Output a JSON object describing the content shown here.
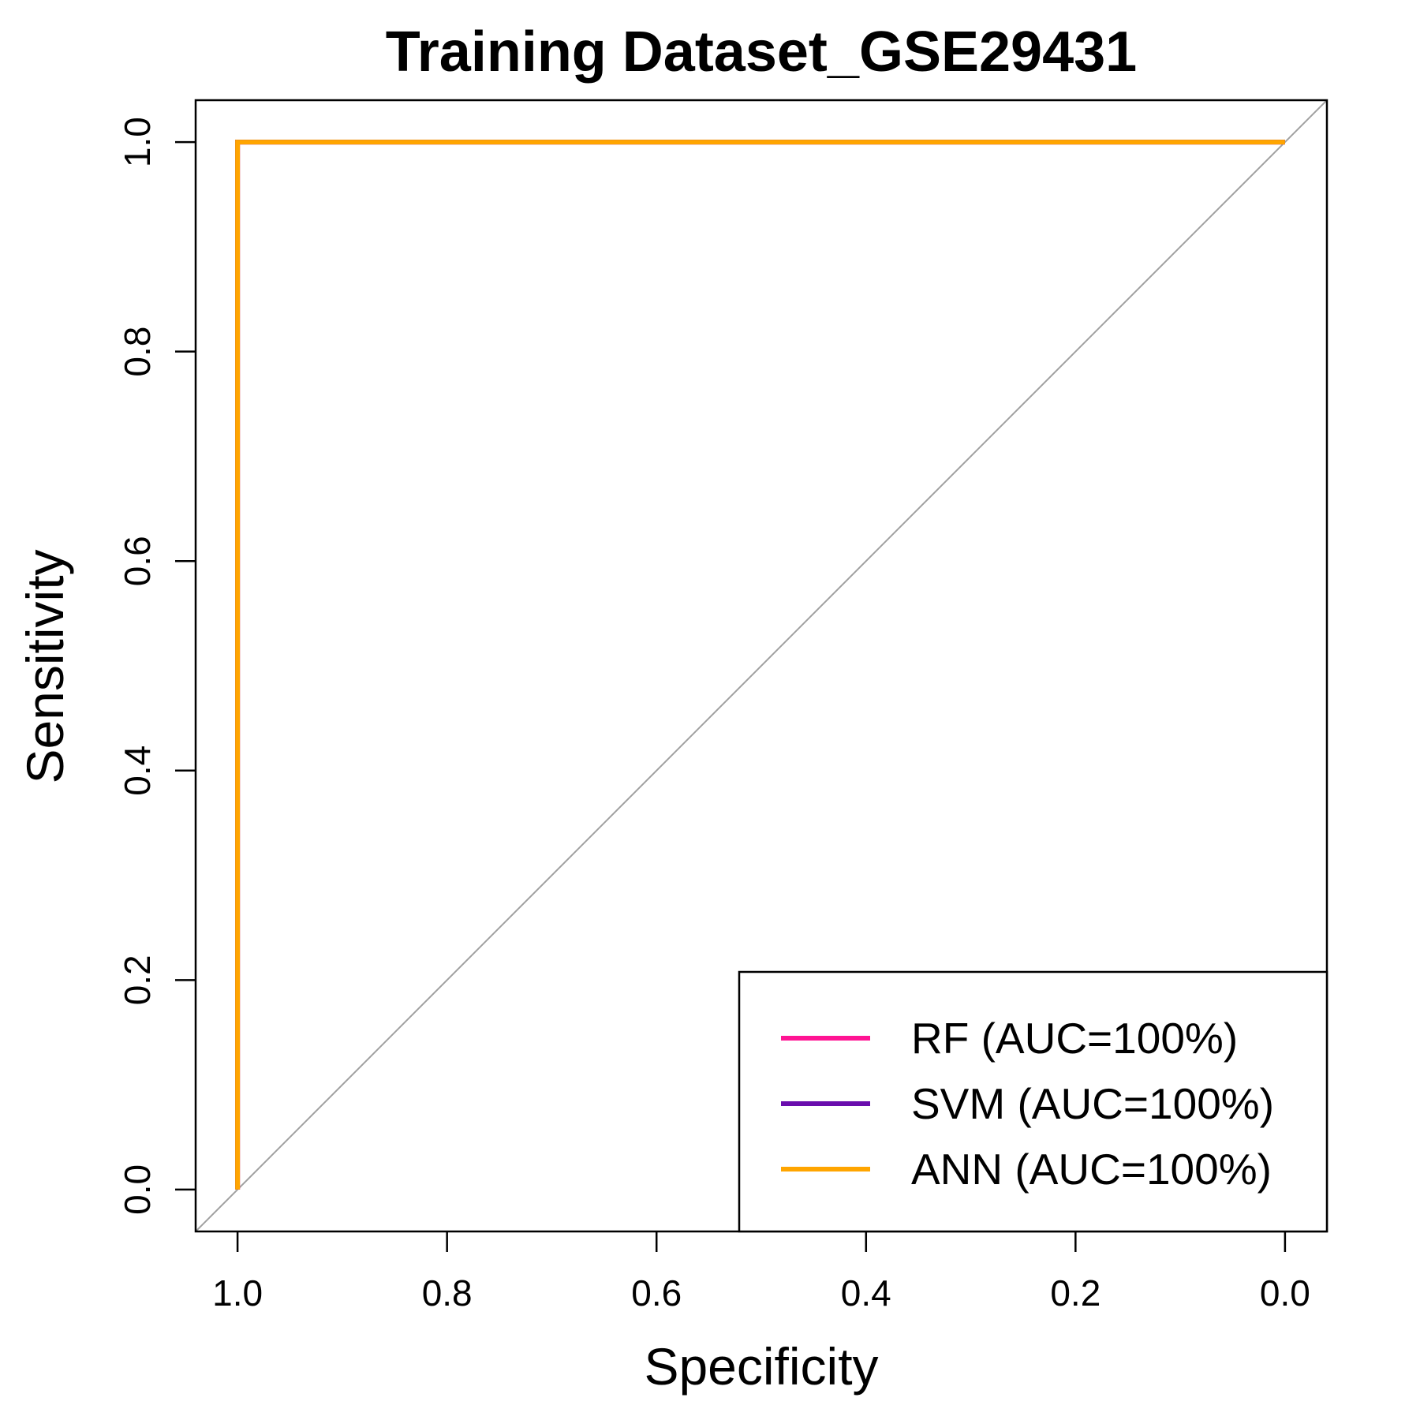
{
  "chart_data": {
    "type": "line",
    "title": "Training Dataset_GSE29431",
    "xlabel": "Specificity",
    "ylabel": "Sensitivity",
    "x_reversed": true,
    "xlim": [
      1.04,
      -0.04
    ],
    "ylim": [
      -0.04,
      1.04
    ],
    "x_ticks": [
      1.0,
      0.8,
      0.6,
      0.4,
      0.2,
      0.0
    ],
    "x_tick_labels": [
      "1.0",
      "0.8",
      "0.6",
      "0.4",
      "0.2",
      "0.0"
    ],
    "y_ticks": [
      0.0,
      0.2,
      0.4,
      0.6,
      0.8,
      1.0
    ],
    "y_tick_labels": [
      "0.0",
      "0.2",
      "0.4",
      "0.6",
      "0.8",
      "1.0"
    ],
    "grid": false,
    "legend_position": "bottom-right",
    "reference_line": {
      "x": [
        1.04,
        -0.04
      ],
      "y": [
        -0.04,
        1.04
      ],
      "color": "#a0a0a0"
    },
    "series": [
      {
        "name": "RF (AUC=100%)",
        "color": "#ff1493",
        "x": [
          1.0,
          1.0,
          0.0
        ],
        "y": [
          0.0,
          1.0,
          1.0
        ]
      },
      {
        "name": "SVM (AUC=100%)",
        "color": "#6a0dad",
        "x": [
          1.0,
          1.0,
          0.0
        ],
        "y": [
          0.0,
          1.0,
          1.0
        ]
      },
      {
        "name": "ANN (AUC=100%)",
        "color": "#ffa500",
        "x": [
          1.0,
          1.0,
          0.0
        ],
        "y": [
          0.0,
          1.0,
          1.0
        ]
      }
    ]
  }
}
